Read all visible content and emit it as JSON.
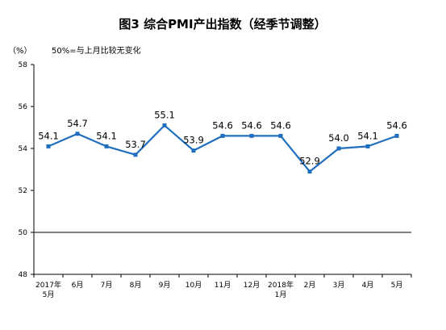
{
  "chart_data": {
    "type": "line",
    "title": "图3  综合PMI产出指数（经季节调整）",
    "unit": "（%）",
    "note": "50%=与上月比较无变化",
    "categories": [
      [
        "2017年",
        "5月"
      ],
      [
        "6月"
      ],
      [
        "7月"
      ],
      [
        "8月"
      ],
      [
        "9月"
      ],
      [
        "10月"
      ],
      [
        "11月"
      ],
      [
        "12月"
      ],
      [
        "2018年",
        "1月"
      ],
      [
        "2月"
      ],
      [
        "3月"
      ],
      [
        "4月"
      ],
      [
        "5月"
      ]
    ],
    "values": [
      54.1,
      54.7,
      54.1,
      53.7,
      55.1,
      53.9,
      54.6,
      54.6,
      54.6,
      52.9,
      54.0,
      54.1,
      54.6
    ],
    "value_labels": [
      "54.1",
      "54.7",
      "54.1",
      "53.7",
      "55.1",
      "53.9",
      "54.6",
      "54.6",
      "54.6",
      "52.9",
      "54.0",
      "54.1",
      "54.6"
    ],
    "ylim": [
      48,
      58
    ],
    "yticks": [
      48,
      50,
      52,
      54,
      56,
      58
    ],
    "reference_line": 50,
    "line_color": "#1f6fbe",
    "grid": false,
    "legend": "none"
  }
}
